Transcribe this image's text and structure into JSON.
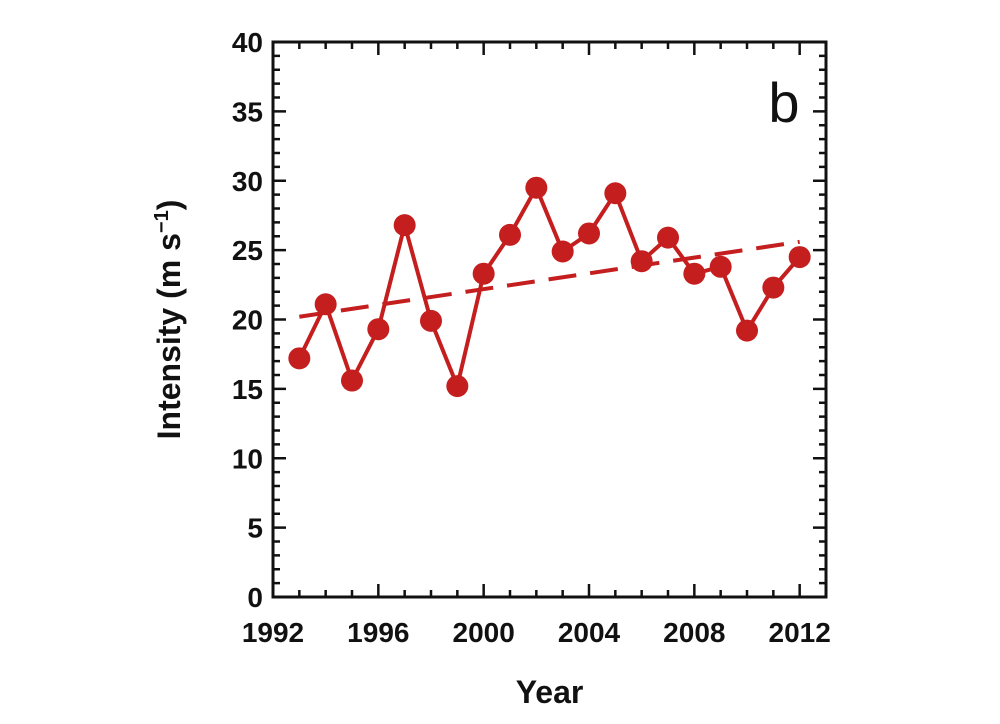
{
  "chart_data": {
    "type": "line",
    "panel_label": "b",
    "xlabel": "Year",
    "ylabel_main": "Intensity (m s",
    "ylabel_sup": "−1",
    "ylabel_close": ")",
    "xlim": [
      1992,
      2013
    ],
    "ylim": [
      0,
      40
    ],
    "x_ticks": [
      1992,
      1996,
      2000,
      2004,
      2008,
      2012
    ],
    "y_ticks": [
      0,
      5,
      10,
      15,
      20,
      25,
      30,
      35,
      40
    ],
    "series": [
      {
        "color": "#c41e1e",
        "x": [
          1993,
          1994,
          1995,
          1996,
          1997,
          1998,
          1999,
          2000,
          2001,
          2002,
          2003,
          2004,
          2005,
          2006,
          2007,
          2008,
          2009,
          2010,
          2011,
          2012
        ],
        "values": [
          17.2,
          21.1,
          15.6,
          19.3,
          26.8,
          19.9,
          15.2,
          23.3,
          26.1,
          29.5,
          24.9,
          26.2,
          29.1,
          24.2,
          25.9,
          23.3,
          23.8,
          19.2,
          22.3,
          24.5
        ]
      }
    ],
    "trend": {
      "color": "#c41e1e",
      "x": [
        1993,
        2012
      ],
      "values": [
        20.2,
        25.6
      ],
      "style": "dashed"
    },
    "grid": false
  }
}
